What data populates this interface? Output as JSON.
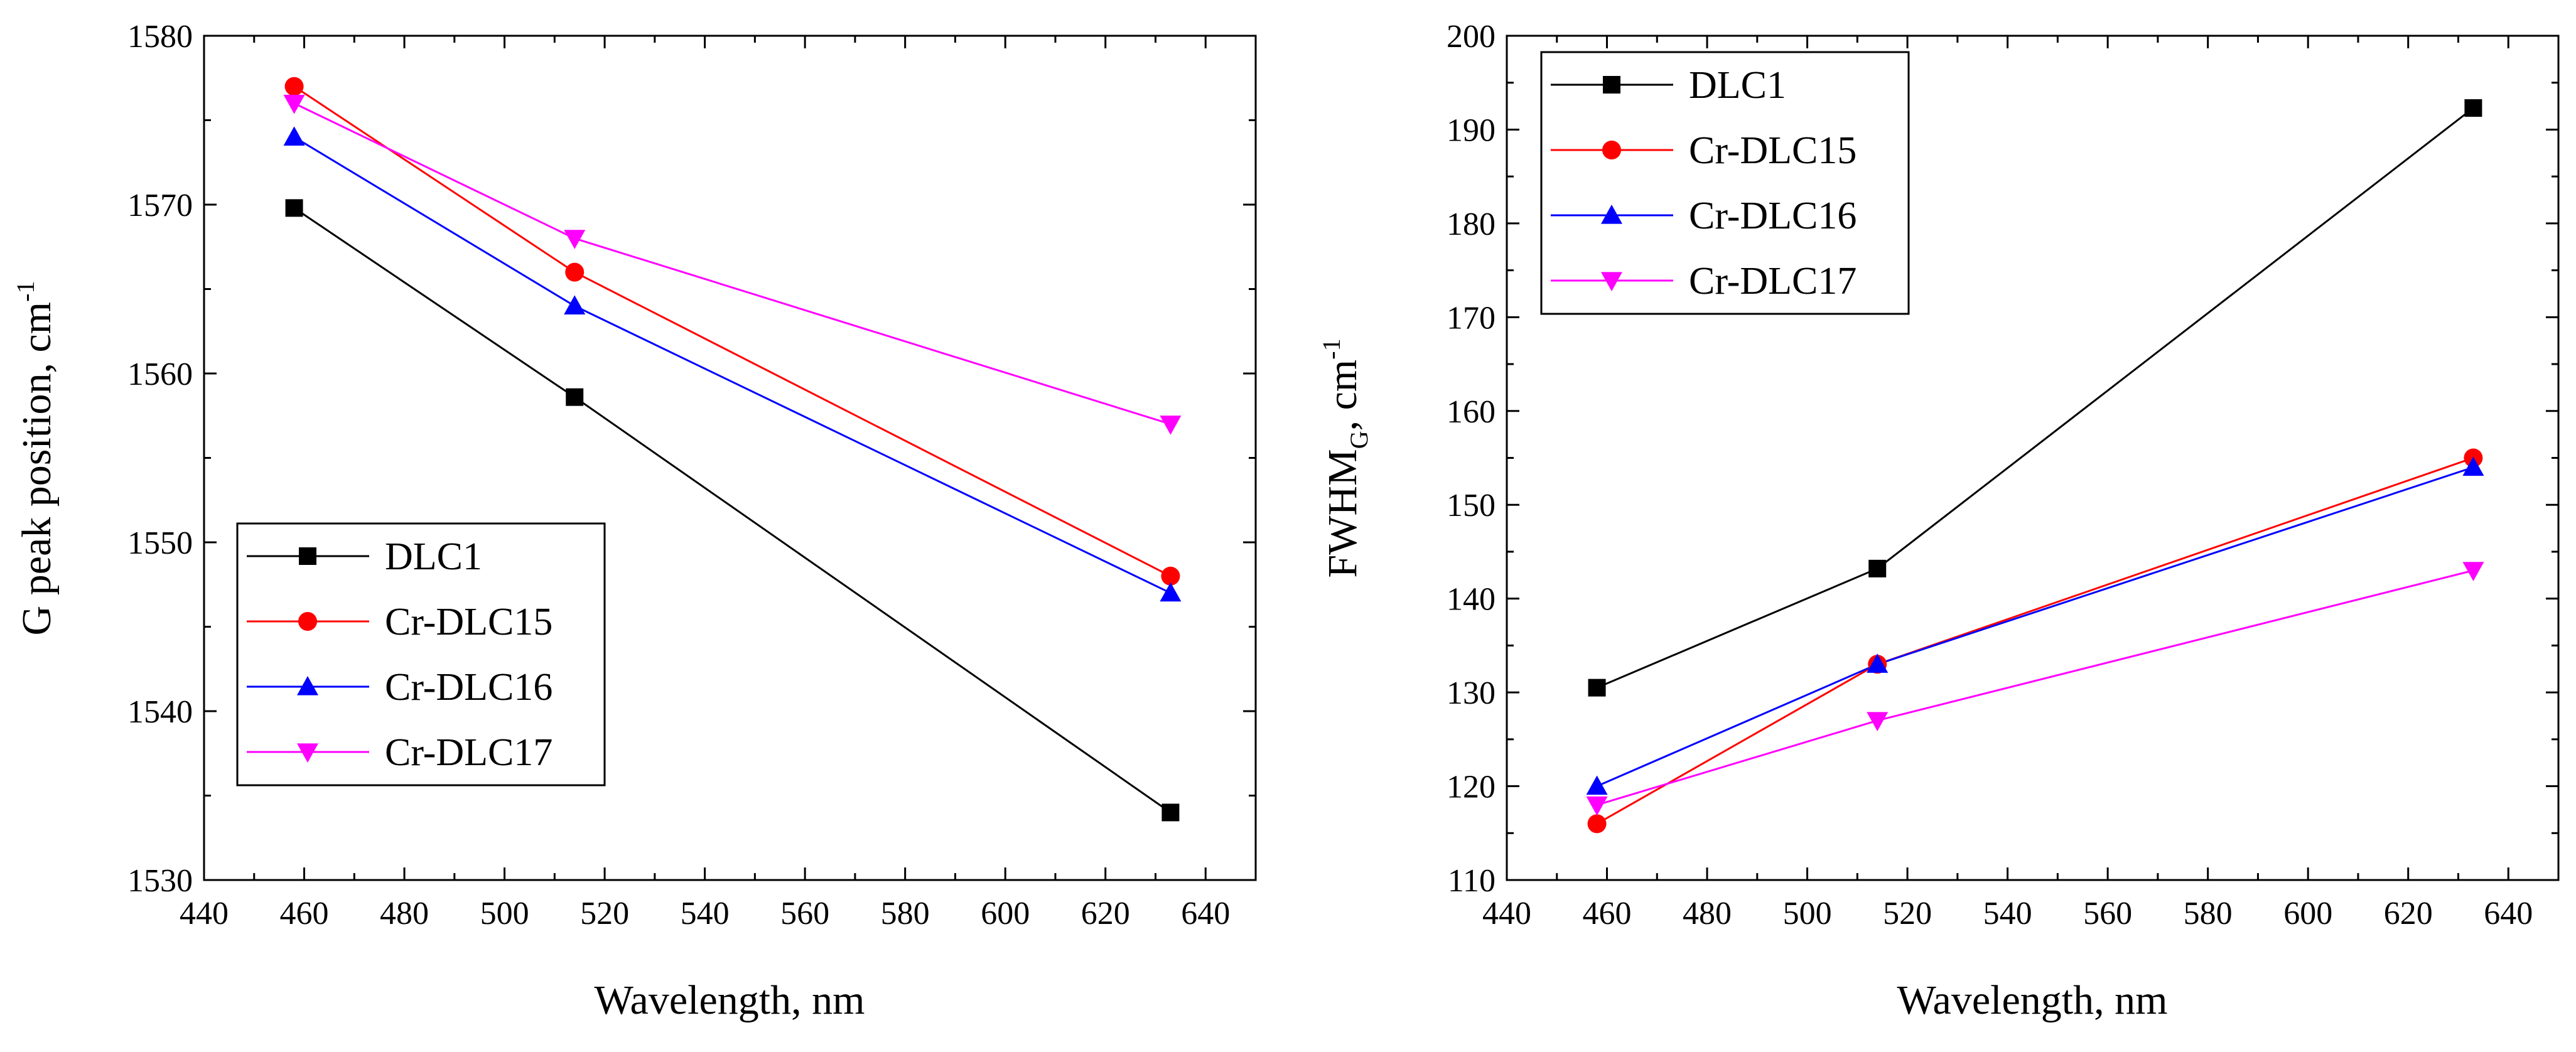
{
  "chart_data": [
    {
      "type": "line",
      "title": "",
      "xlabel": "Wavelength, nm",
      "ylabel_main": "G peak position, cm",
      "ylabel_sup": "-1",
      "ylabel_sub": "",
      "xlim": [
        440,
        650
      ],
      "ylim": [
        1530,
        1580
      ],
      "xticks": [
        440,
        460,
        480,
        500,
        520,
        540,
        560,
        580,
        600,
        620,
        640
      ],
      "yticks": [
        1530,
        1540,
        1550,
        1560,
        1570,
        1580
      ],
      "grid": false,
      "legend_position": "bottom-left",
      "x": [
        458,
        514,
        633
      ],
      "series": [
        {
          "name": "DLC1",
          "color": "#000000",
          "marker": "square",
          "values": [
            1569.8,
            1558.6,
            1534.0
          ]
        },
        {
          "name": "Cr-DLC15",
          "color": "#ff0000",
          "marker": "circle",
          "values": [
            1577.0,
            1566.0,
            1548.0
          ]
        },
        {
          "name": "Cr-DLC16",
          "color": "#0000ff",
          "marker": "triangle-up",
          "values": [
            1574.0,
            1564.0,
            1547.0
          ]
        },
        {
          "name": "Cr-DLC17",
          "color": "#ff00ff",
          "marker": "triangle-down",
          "values": [
            1576.0,
            1568.0,
            1557.0
          ]
        }
      ]
    },
    {
      "type": "line",
      "title": "",
      "xlabel": "Wavelength, nm",
      "ylabel_main": "FWHM",
      "ylabel_sub": "G",
      "ylabel_tail": ", cm",
      "ylabel_sup": "-1",
      "xlim": [
        440,
        650
      ],
      "ylim": [
        110,
        200
      ],
      "xticks": [
        440,
        460,
        480,
        500,
        520,
        540,
        560,
        580,
        600,
        620,
        640
      ],
      "yticks": [
        110,
        120,
        130,
        140,
        150,
        160,
        170,
        180,
        190,
        200
      ],
      "grid": false,
      "legend_position": "top-left",
      "x": [
        458,
        514,
        633
      ],
      "series": [
        {
          "name": "DLC1",
          "color": "#000000",
          "marker": "square",
          "values": [
            130.5,
            143.2,
            192.3
          ]
        },
        {
          "name": "Cr-DLC15",
          "color": "#ff0000",
          "marker": "circle",
          "values": [
            116.0,
            133.0,
            155.0
          ]
        },
        {
          "name": "Cr-DLC16",
          "color": "#0000ff",
          "marker": "triangle-up",
          "values": [
            120.0,
            133.0,
            154.0
          ]
        },
        {
          "name": "Cr-DLC17",
          "color": "#ff00ff",
          "marker": "triangle-down",
          "values": [
            118.0,
            127.0,
            143.0
          ]
        }
      ]
    }
  ]
}
